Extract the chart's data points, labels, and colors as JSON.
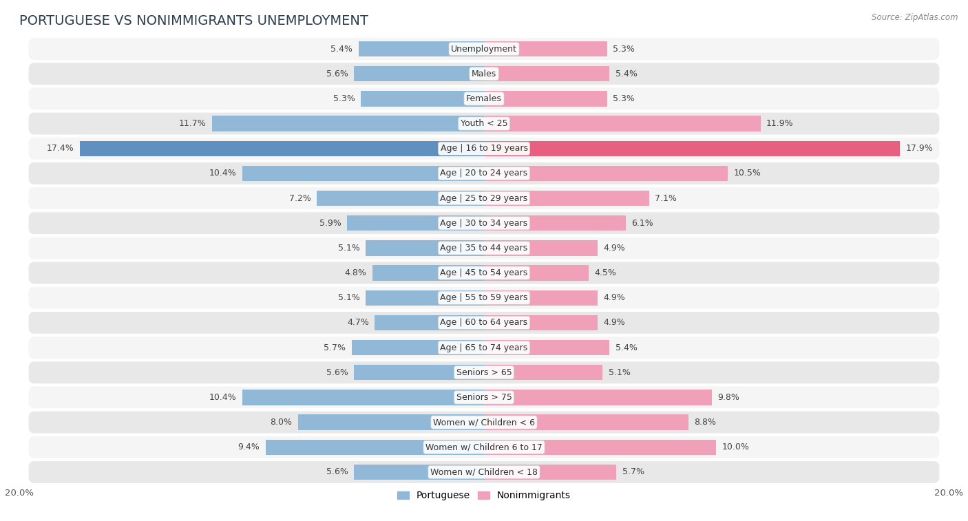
{
  "title": "PORTUGUESE VS NONIMMIGRANTS UNEMPLOYMENT",
  "source": "Source: ZipAtlas.com",
  "categories": [
    "Unemployment",
    "Males",
    "Females",
    "Youth < 25",
    "Age | 16 to 19 years",
    "Age | 20 to 24 years",
    "Age | 25 to 29 years",
    "Age | 30 to 34 years",
    "Age | 35 to 44 years",
    "Age | 45 to 54 years",
    "Age | 55 to 59 years",
    "Age | 60 to 64 years",
    "Age | 65 to 74 years",
    "Seniors > 65",
    "Seniors > 75",
    "Women w/ Children < 6",
    "Women w/ Children 6 to 17",
    "Women w/ Children < 18"
  ],
  "portuguese": [
    5.4,
    5.6,
    5.3,
    11.7,
    17.4,
    10.4,
    7.2,
    5.9,
    5.1,
    4.8,
    5.1,
    4.7,
    5.7,
    5.6,
    10.4,
    8.0,
    9.4,
    5.6
  ],
  "nonimmigrants": [
    5.3,
    5.4,
    5.3,
    11.9,
    17.9,
    10.5,
    7.1,
    6.1,
    4.9,
    4.5,
    4.9,
    4.9,
    5.4,
    5.1,
    9.8,
    8.8,
    10.0,
    5.7
  ],
  "portuguese_color": "#92b8d8",
  "nonimmigrants_color": "#f0a0b8",
  "highlighted_portuguese_color": "#6090c0",
  "highlighted_nonimmigrants_color": "#e86080",
  "background_color": "#ffffff",
  "row_color_light": "#f5f5f5",
  "row_color_dark": "#e8e8e8",
  "row_border_color": "#d8d8d8",
  "axis_limit": 20.0,
  "bar_height": 0.62,
  "label_fontsize": 9.0,
  "category_fontsize": 9.0,
  "title_fontsize": 14
}
